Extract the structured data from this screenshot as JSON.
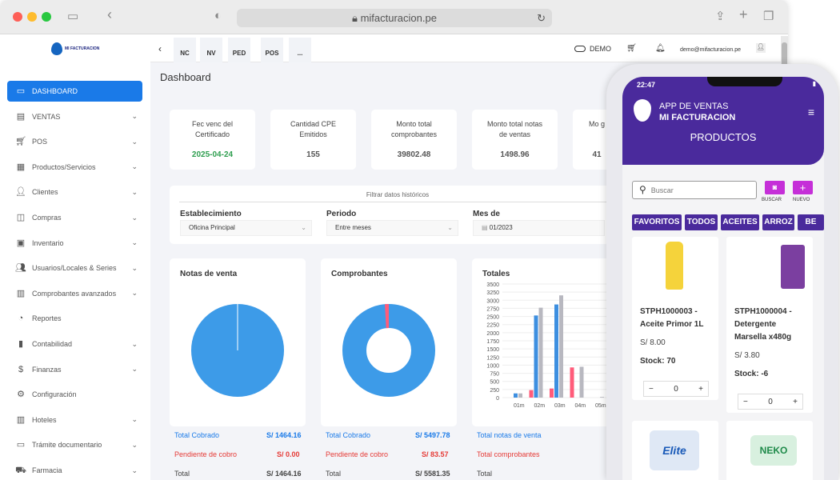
{
  "browser": {
    "url": "mifacturacion.pe"
  },
  "sidebar": {
    "logo_text": "MI FACTURACION",
    "items": [
      {
        "label": "DASHBOARD",
        "icon": "monitor-icon",
        "chev": false
      },
      {
        "label": "VENTAS",
        "icon": "document-icon",
        "chev": true
      },
      {
        "label": "POS",
        "icon": "cart-icon",
        "chev": true
      },
      {
        "label": "Productos/Servicios",
        "icon": "grid-icon",
        "chev": true
      },
      {
        "label": "Clientes",
        "icon": "user-plus-icon",
        "chev": true
      },
      {
        "label": "Compras",
        "icon": "bag-icon",
        "chev": true
      },
      {
        "label": "Inventario",
        "icon": "archive-icon",
        "chev": true
      },
      {
        "label": "Usuarios/Locales & Series",
        "icon": "users-icon",
        "chev": true
      },
      {
        "label": "Comprobantes avanzados",
        "icon": "doc-stack-icon",
        "chev": true
      },
      {
        "label": "Reportes",
        "icon": "pie-icon",
        "chev": false
      },
      {
        "label": "Contabilidad",
        "icon": "bar-icon",
        "chev": true
      },
      {
        "label": "Finanzas",
        "icon": "dollar-icon",
        "chev": true
      },
      {
        "label": "Configuración",
        "icon": "gear-icon",
        "chev": false
      },
      {
        "label": "Hoteles",
        "icon": "building-icon",
        "chev": true
      },
      {
        "label": "Trámite documentario",
        "icon": "folder-icon",
        "chev": true
      },
      {
        "label": "Farmacia",
        "icon": "truck-icon",
        "chev": true
      }
    ]
  },
  "topbar": {
    "tabs": [
      "NC",
      "NV",
      "PED",
      "POS",
      "..."
    ],
    "demo": "DEMO",
    "email": "demo@mifacturacion.pe"
  },
  "dashboard": {
    "title": "Dashboard"
  },
  "stats": [
    {
      "label": "Fec venc del Certificado",
      "value": "2025-04-24",
      "color": "#2e9e4f"
    },
    {
      "label": "Cantidad CPE Emitidos",
      "value": "155",
      "color": "#555"
    },
    {
      "label": "Monto total comprobantes",
      "value": "39802.48",
      "color": "#555"
    },
    {
      "label": "Monto total notas de ventas",
      "value": "1498.96",
      "color": "#555"
    },
    {
      "label": "Mo g",
      "value": "41",
      "color": "#555"
    }
  ],
  "filter": {
    "title": "Filtrar datos históricos",
    "establecimiento_label": "Establecimiento",
    "establecimiento_value": "Oficina Principal",
    "periodo_label": "Periodo",
    "periodo_value": "Entre meses",
    "mes_label": "Mes de",
    "mes_value": "01/2023"
  },
  "notas": {
    "title": "Notas de venta",
    "cobrado_label": "Total Cobrado",
    "cobrado": "S/ 1464.16",
    "pendiente_label": "Pendiente de cobro",
    "pendiente": "S/ 0.00",
    "total_label": "Total",
    "total": "S/ 1464.16"
  },
  "comprobantes": {
    "title": "Comprobantes",
    "cobrado_label": "Total Cobrado",
    "cobrado": "S/ 5497.78",
    "pendiente_label": "Pendiente de cobro",
    "pendiente": "S/ 83.57",
    "total_label": "Total",
    "total": "S/ 5581.35"
  },
  "totales": {
    "title": "Totales",
    "l1": "Total notas de venta",
    "l2": "Total comprobantes",
    "l3": "Total"
  },
  "chart_data": {
    "type": "bar",
    "title": "Totales",
    "categories": [
      "01m",
      "02m",
      "03m",
      "04m",
      "05m"
    ],
    "ylim": [
      0,
      3500
    ],
    "yticks": [
      0,
      250,
      500,
      750,
      1000,
      1250,
      1500,
      1750,
      2000,
      2250,
      2500,
      2750,
      3000,
      3250,
      3500
    ],
    "series": [
      {
        "color": "#3d8fe0",
        "values": [
          130,
          2530,
          2870,
          0,
          0
        ]
      },
      {
        "color": "#b8b8c0",
        "values": [
          130,
          2770,
          3150,
          950,
          20
        ]
      },
      {
        "color": "#ff5c7a",
        "values": [
          0,
          230,
          280,
          930,
          0
        ]
      }
    ]
  },
  "phone": {
    "time": "22:47",
    "app_line1": "APP DE VENTAS",
    "app_line2": "MI FACTURACION",
    "section": "PRODUCTOS",
    "search_placeholder": "Buscar",
    "buscar": "BUSCAR",
    "nuevo": "NUEVO",
    "categories": [
      "FAVORITOS",
      "TODOS",
      "ACEITES",
      "ARROZ",
      "BE"
    ],
    "products": [
      {
        "name1": "STPH1000003 -",
        "name2": "Aceite Primor 1L",
        "price": "S/ 8.00",
        "stock": "Stock: 70",
        "qty": "0"
      },
      {
        "name1": "STPH1000004 -",
        "name2": "Detergente",
        "name3": "Marsella x480g",
        "price": "S/ 3.80",
        "stock": "Stock: -6",
        "qty": "0"
      }
    ],
    "lower_brands": [
      "Elite",
      "NEKO"
    ]
  }
}
